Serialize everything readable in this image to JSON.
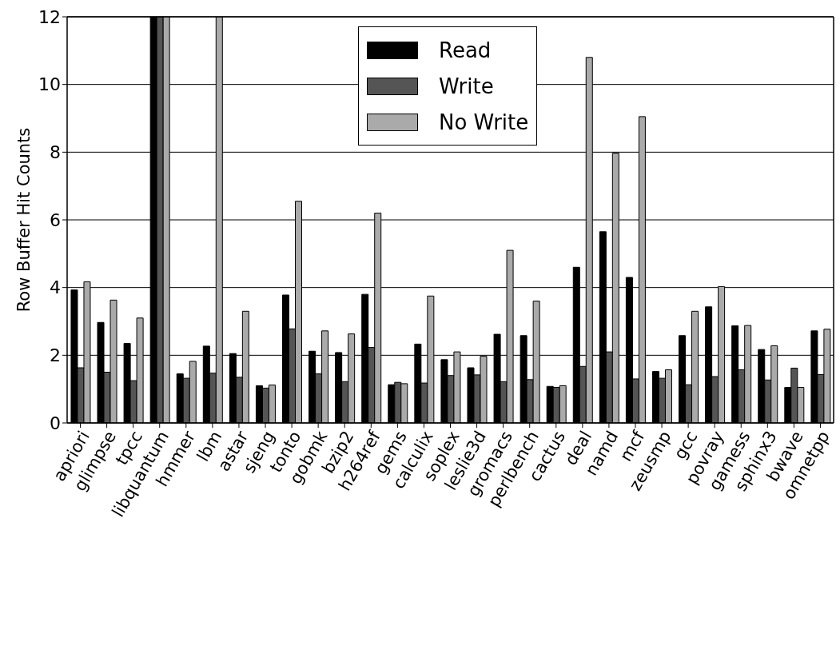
{
  "chart_data": {
    "type": "bar",
    "ylabel": "Row Buffer Hit Counts",
    "categories": [
      "apriori",
      "glimpse",
      "tpcc",
      "libquantum",
      "hmmer",
      "lbm",
      "astar",
      "sjeng",
      "tonto",
      "gobmk",
      "bzip2",
      "h264ref",
      "gems",
      "calculix",
      "soplex",
      "leslie3d",
      "gromacs",
      "perlbench",
      "cactus",
      "deal",
      "namd",
      "mcf",
      "zeusmp",
      "gcc",
      "povray",
      "gamess",
      "sphinx3",
      "bwave",
      "omnetpp"
    ],
    "series": [
      {
        "name": "Read",
        "color": "#000000",
        "values": [
          3.93,
          2.97,
          2.35,
          12,
          1.45,
          2.27,
          2.05,
          1.1,
          3.78,
          2.12,
          2.08,
          3.8,
          1.13,
          2.33,
          1.87,
          1.63,
          2.62,
          2.58,
          1.08,
          4.6,
          5.65,
          4.3,
          1.52,
          2.58,
          3.43,
          2.87,
          2.17,
          1.05,
          2.72
        ]
      },
      {
        "name": "Write",
        "color": "#555555",
        "values": [
          1.63,
          1.5,
          1.25,
          12,
          1.32,
          1.47,
          1.35,
          1.03,
          2.78,
          1.45,
          1.22,
          2.23,
          1.2,
          1.18,
          1.4,
          1.42,
          1.22,
          1.28,
          1.05,
          1.67,
          2.1,
          1.3,
          1.32,
          1.13,
          1.37,
          1.57,
          1.27,
          1.62,
          1.43
        ]
      },
      {
        "name": "No Write",
        "color": "#aaaaaa",
        "values": [
          4.17,
          3.63,
          3.1,
          12,
          1.82,
          12,
          3.3,
          1.12,
          6.55,
          2.72,
          2.63,
          6.2,
          1.16,
          3.75,
          2.1,
          1.97,
          5.1,
          3.6,
          1.1,
          10.8,
          7.97,
          9.05,
          1.57,
          3.3,
          4.03,
          2.88,
          2.28,
          1.05,
          2.77
        ]
      }
    ],
    "ylim": [
      0,
      12
    ],
    "yticks": [
      0,
      2,
      4,
      6,
      8,
      10,
      12
    ],
    "grid": "y",
    "legend": "top"
  }
}
